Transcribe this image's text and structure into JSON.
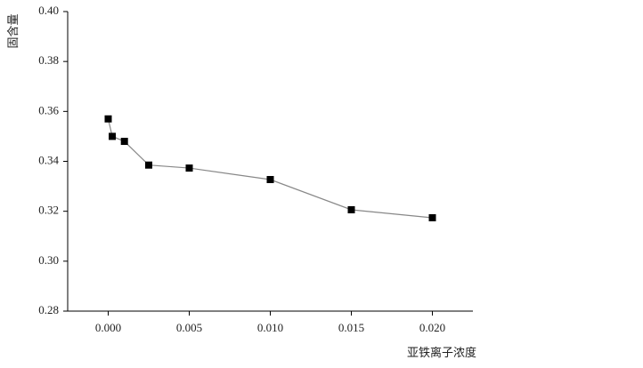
{
  "chart_data": {
    "type": "line",
    "x_label": "亚铁离子浓度",
    "y_label": "固含量",
    "series": [
      {
        "color": "#000000",
        "line_color": "#888888",
        "x": [
          0.0,
          0.00025,
          0.001,
          0.0025,
          0.005,
          0.01,
          0.015,
          0.02
        ],
        "values": [
          0.357,
          0.35,
          0.348,
          0.3385,
          0.3373,
          0.3327,
          0.3206,
          0.3174
        ]
      }
    ],
    "xlim": [
      -0.0025,
      0.0225
    ],
    "xticks": [
      {
        "value": 0,
        "label": "0.000"
      },
      {
        "value": 0.005,
        "label": "0.005"
      },
      {
        "value": 0.01,
        "label": "0.010"
      },
      {
        "value": 0.015,
        "label": "0.015"
      },
      {
        "value": 0.02,
        "label": "0.020"
      }
    ],
    "ylim": [
      0.28,
      0.4
    ],
    "yticks": [
      {
        "value": 0.28,
        "label": "0.28"
      },
      {
        "value": 0.3,
        "label": "0.30"
      },
      {
        "value": 0.32,
        "label": "0.32"
      },
      {
        "value": 0.34,
        "label": "0.34"
      },
      {
        "value": 0.36,
        "label": "0.36"
      },
      {
        "value": 0.38,
        "label": "0.38"
      },
      {
        "value": 0.4,
        "label": "0.40"
      }
    ],
    "grid": false
  }
}
